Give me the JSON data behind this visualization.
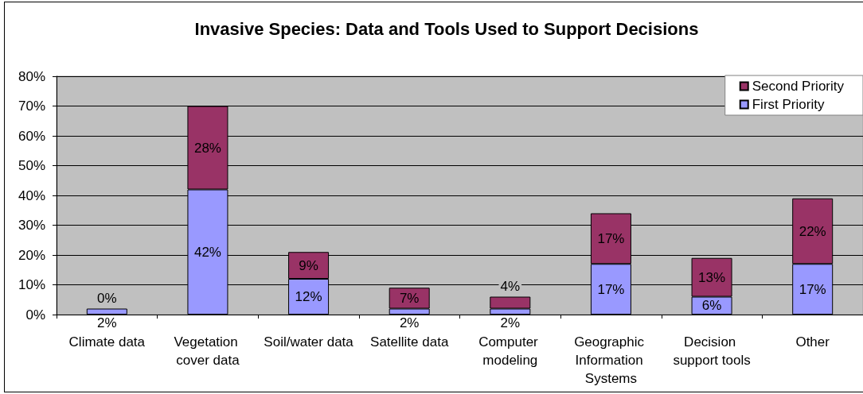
{
  "chart_data": {
    "type": "bar",
    "title": "Invasive Species: Data and Tools Used to Support Decisions",
    "categories": [
      "Climate data",
      "Vegetation cover data",
      "Soil/water data",
      "Satellite data",
      "Computer modeling",
      "Geographic Information Systems",
      "Decision support tools",
      "Other"
    ],
    "series": [
      {
        "name": "First Priority",
        "color": "#9999ff",
        "values": [
          2,
          42,
          12,
          2,
          2,
          17,
          6,
          17
        ],
        "value_labels": [
          "2%",
          "42%",
          "12%",
          "2%",
          "2%",
          "17%",
          "6%",
          "17%"
        ]
      },
      {
        "name": "Second Priority",
        "color": "#993366",
        "values": [
          0,
          28,
          9,
          7,
          4,
          17,
          13,
          22
        ],
        "value_labels": [
          "0%",
          "28%",
          "9%",
          "7%",
          "4%",
          "17%",
          "13%",
          "22%"
        ]
      }
    ],
    "stacked": true,
    "ylim": [
      0,
      80
    ],
    "yticks": [
      {
        "value": 0,
        "label": "0%"
      },
      {
        "value": 10,
        "label": "10%"
      },
      {
        "value": 20,
        "label": "20%"
      },
      {
        "value": 30,
        "label": "30%"
      },
      {
        "value": 40,
        "label": "40%"
      },
      {
        "value": 50,
        "label": "50%"
      },
      {
        "value": 60,
        "label": "60%"
      },
      {
        "value": 70,
        "label": "70%"
      },
      {
        "value": 80,
        "label": "80%"
      }
    ],
    "grid": "y",
    "legend": "top right"
  }
}
